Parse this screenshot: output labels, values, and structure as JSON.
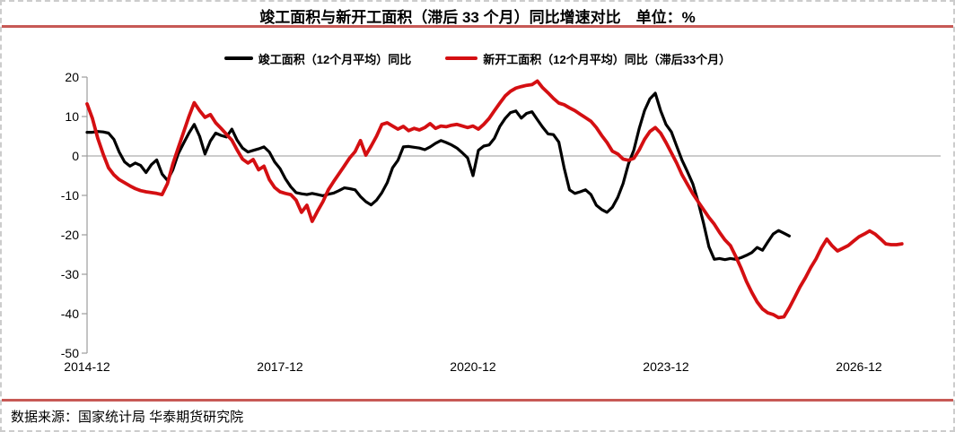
{
  "page": {
    "title": "竣工面积与新开工面积（滞后 33 个月）同比增速对比　单位：%",
    "source_note": "数据来源：国家统计局  华泰期货研究院"
  },
  "colors": {
    "completed_line": "#000000",
    "newstart_line": "#d40f12",
    "heading_rule": "#c75955",
    "axis": "#9c9c9c",
    "zero_line": "#bbbbbb"
  },
  "legend": {
    "items": [
      {
        "label": "竣工面积（12个月平均）同比"
      },
      {
        "label": "新开工面积（12个月平均）同比（滞后33个月）"
      }
    ]
  },
  "chart_data": {
    "type": "line",
    "title": "竣工面积与新开工面积（滞后 33 个月）同比增速对比",
    "unit": "%",
    "start_month": "2014-12",
    "months_per_point": 1,
    "ylim": [
      -50,
      20
    ],
    "grid": "zero-line-only",
    "legend_position": "top",
    "y_tick_values": [
      20,
      10,
      0,
      -10,
      -20,
      -30,
      -40,
      -50
    ],
    "y_tick_labels": [
      "20",
      "10",
      "0",
      "-10",
      "-20",
      "-30",
      "-40",
      "-50"
    ],
    "x_tick_months": [
      0,
      36,
      72,
      108,
      144
    ],
    "x_tick_labels": [
      "2014-12",
      "2017-12",
      "2020-12",
      "2023-12",
      "2026-12"
    ],
    "series": [
      {
        "name": "竣工面积（12个月平均）同比",
        "color": "#000000",
        "values": [
          6.0,
          6.0,
          6.2,
          6.1,
          5.8,
          4.2,
          1.0,
          -1.5,
          -2.6,
          -1.8,
          -2.4,
          -4.2,
          -2.2,
          -1.0,
          -4.6,
          -6.2,
          -3.5,
          0.5,
          3.2,
          5.8,
          8.0,
          5.0,
          0.5,
          3.8,
          5.8,
          5.2,
          4.8,
          6.8,
          4.0,
          2.0,
          1.0,
          1.4,
          1.8,
          2.3,
          1.0,
          -1.5,
          -3.2,
          -5.8,
          -7.8,
          -9.3,
          -9.6,
          -9.8,
          -9.5,
          -9.8,
          -10.1,
          -9.7,
          -9.4,
          -8.8,
          -8.1,
          -8.3,
          -8.6,
          -10.3,
          -11.6,
          -12.4,
          -11.2,
          -9.3,
          -6.8,
          -3.0,
          -1.1,
          2.3,
          2.4,
          2.2,
          2.0,
          1.6,
          2.3,
          3.2,
          3.9,
          3.4,
          2.8,
          2.0,
          0.8,
          -0.5,
          -5.0,
          1.4,
          2.5,
          2.8,
          4.5,
          7.5,
          9.5,
          11.0,
          11.4,
          9.6,
          10.8,
          11.2,
          9.2,
          7.3,
          5.6,
          5.4,
          3.5,
          -3.0,
          -8.6,
          -9.5,
          -9.1,
          -8.6,
          -9.8,
          -12.5,
          -13.6,
          -14.3,
          -13.0,
          -10.5,
          -7.0,
          -2.0,
          1.5,
          6.9,
          11.5,
          14.5,
          15.9,
          11.5,
          8.0,
          6.1,
          2.5,
          -1.1,
          -4.0,
          -7.1,
          -11.6,
          -17.0,
          -23.0,
          -26.2,
          -26.0,
          -26.3,
          -26.0,
          -26.2,
          -25.8,
          -25.2,
          -24.5,
          -23.2,
          -23.9,
          -21.8,
          -19.8,
          -18.9,
          -19.6,
          -20.3
        ]
      },
      {
        "name": "新开工面积（12个月平均）同比（滞后33个月）",
        "color": "#d40f12",
        "values": [
          13.2,
          9.5,
          4.5,
          0.5,
          -3.0,
          -4.8,
          -6.0,
          -6.8,
          -7.6,
          -8.3,
          -8.8,
          -9.1,
          -9.3,
          -9.5,
          -9.8,
          -7.0,
          -2.0,
          2.0,
          6.0,
          10.0,
          13.5,
          11.5,
          9.8,
          10.5,
          8.4,
          7.0,
          5.5,
          4.0,
          1.5,
          -0.8,
          -1.8,
          -0.9,
          -3.5,
          -2.6,
          -6.0,
          -8.0,
          -9.1,
          -9.5,
          -9.8,
          -11.2,
          -14.3,
          -12.5,
          -16.6,
          -14.0,
          -11.6,
          -8.6,
          -6.5,
          -4.5,
          -2.5,
          -0.5,
          1.1,
          3.9,
          0.2,
          2.5,
          5.0,
          8.0,
          8.4,
          7.6,
          6.8,
          7.5,
          6.4,
          7.0,
          6.6,
          7.2,
          8.2,
          7.0,
          7.6,
          7.4,
          7.8,
          8.0,
          7.6,
          7.2,
          7.6,
          6.8,
          8.0,
          9.5,
          11.5,
          13.4,
          15.2,
          16.4,
          17.2,
          17.6,
          17.9,
          18.1,
          19.0,
          17.3,
          16.0,
          14.6,
          13.4,
          13.0,
          12.2,
          11.5,
          10.6,
          9.7,
          8.8,
          7.2,
          5.2,
          3.4,
          1.2,
          0.5,
          -0.8,
          -1.1,
          -0.6,
          1.5,
          4.2,
          6.2,
          7.2,
          5.8,
          3.4,
          0.8,
          -1.8,
          -4.8,
          -7.2,
          -9.6,
          -11.6,
          -13.6,
          -15.6,
          -17.3,
          -19.4,
          -21.3,
          -22.7,
          -25.4,
          -28.4,
          -31.8,
          -34.6,
          -37.0,
          -38.8,
          -39.8,
          -40.2,
          -41.0,
          -40.8,
          -38.5,
          -35.9,
          -33.2,
          -30.9,
          -28.3,
          -26.1,
          -23.3,
          -21.1,
          -22.8,
          -24.1,
          -23.4,
          -22.7,
          -21.6,
          -20.5,
          -19.8,
          -19.0,
          -19.8,
          -21.0,
          -22.3,
          -22.5,
          -22.5,
          -22.3
        ]
      }
    ]
  }
}
